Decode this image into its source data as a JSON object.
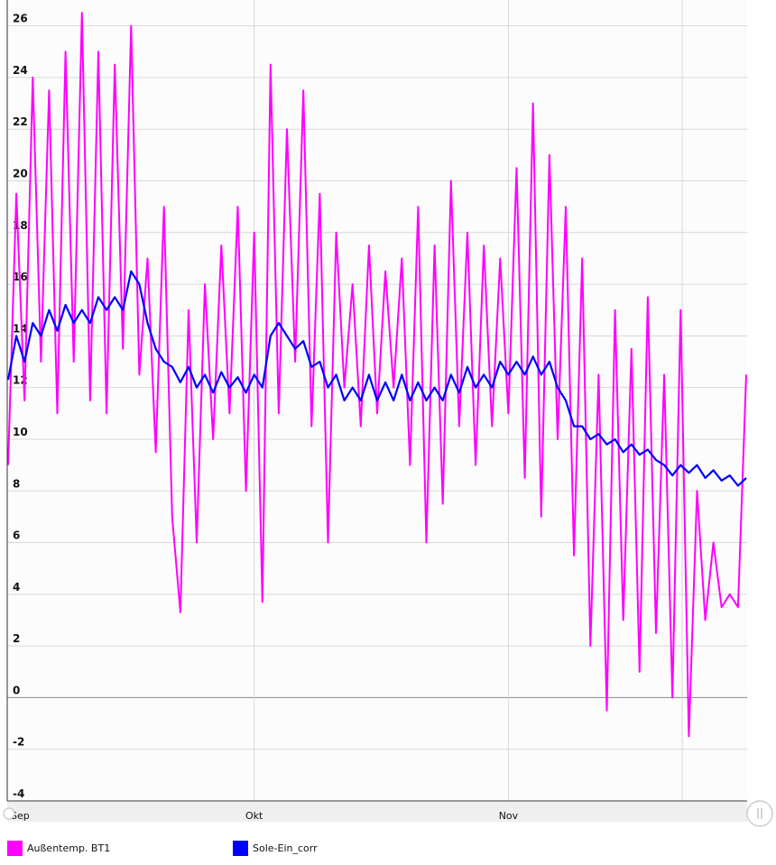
{
  "chart_data": {
    "type": "line",
    "title": "",
    "xlabel": "",
    "ylabel": "",
    "ylim": [
      -4,
      27
    ],
    "yticks": [
      -4,
      -2,
      0,
      2,
      4,
      6,
      8,
      10,
      12,
      14,
      16,
      18,
      20,
      22,
      24,
      26
    ],
    "x_ticks": [
      {
        "label": "Sep",
        "date": "2023-09-01"
      },
      {
        "label": "Okt",
        "date": "2023-10-01"
      },
      {
        "label": "Nov",
        "date": "2023-11-01"
      }
    ],
    "grid": true,
    "legend_position": "bottom",
    "series": [
      {
        "name": "Außentemp. BT1",
        "color": "#ff00ff",
        "points": [
          [
            "2023-09-01",
            9.0
          ],
          [
            "2023-09-02",
            19.5
          ],
          [
            "2023-09-03",
            11.5
          ],
          [
            "2023-09-04",
            24.0
          ],
          [
            "2023-09-05",
            13.0
          ],
          [
            "2023-09-06",
            23.5
          ],
          [
            "2023-09-07",
            11.0
          ],
          [
            "2023-09-08",
            25.0
          ],
          [
            "2023-09-09",
            13.0
          ],
          [
            "2023-09-10",
            26.5
          ],
          [
            "2023-09-11",
            11.5
          ],
          [
            "2023-09-12",
            25.0
          ],
          [
            "2023-09-13",
            11.0
          ],
          [
            "2023-09-14",
            24.5
          ],
          [
            "2023-09-15",
            13.5
          ],
          [
            "2023-09-16",
            26.0
          ],
          [
            "2023-09-17",
            12.5
          ],
          [
            "2023-09-18",
            17.0
          ],
          [
            "2023-09-19",
            9.5
          ],
          [
            "2023-09-20",
            19.0
          ],
          [
            "2023-09-21",
            7.0
          ],
          [
            "2023-09-22",
            3.3
          ],
          [
            "2023-09-23",
            15.0
          ],
          [
            "2023-09-24",
            6.0
          ],
          [
            "2023-09-25",
            16.0
          ],
          [
            "2023-09-26",
            10.0
          ],
          [
            "2023-09-27",
            17.5
          ],
          [
            "2023-09-28",
            11.0
          ],
          [
            "2023-09-29",
            19.0
          ],
          [
            "2023-09-30",
            8.0
          ],
          [
            "2023-10-01",
            18.0
          ],
          [
            "2023-10-02",
            3.7
          ],
          [
            "2023-10-03",
            24.5
          ],
          [
            "2023-10-04",
            11.0
          ],
          [
            "2023-10-05",
            22.0
          ],
          [
            "2023-10-06",
            13.0
          ],
          [
            "2023-10-07",
            23.5
          ],
          [
            "2023-10-08",
            10.5
          ],
          [
            "2023-10-09",
            19.5
          ],
          [
            "2023-10-10",
            6.0
          ],
          [
            "2023-10-11",
            18.0
          ],
          [
            "2023-10-12",
            12.0
          ],
          [
            "2023-10-13",
            16.0
          ],
          [
            "2023-10-14",
            10.5
          ],
          [
            "2023-10-15",
            17.5
          ],
          [
            "2023-10-16",
            11.0
          ],
          [
            "2023-10-17",
            16.5
          ],
          [
            "2023-10-18",
            12.0
          ],
          [
            "2023-10-19",
            17.0
          ],
          [
            "2023-10-20",
            9.0
          ],
          [
            "2023-10-21",
            19.0
          ],
          [
            "2023-10-22",
            6.0
          ],
          [
            "2023-10-23",
            17.5
          ],
          [
            "2023-10-24",
            7.5
          ],
          [
            "2023-10-25",
            20.0
          ],
          [
            "2023-10-26",
            10.5
          ],
          [
            "2023-10-27",
            18.0
          ],
          [
            "2023-10-28",
            9.0
          ],
          [
            "2023-10-29",
            17.5
          ],
          [
            "2023-10-30",
            10.5
          ],
          [
            "2023-10-31",
            17.0
          ],
          [
            "2023-11-01",
            11.0
          ],
          [
            "2023-11-02",
            20.5
          ],
          [
            "2023-11-03",
            8.5
          ],
          [
            "2023-11-04",
            23.0
          ],
          [
            "2023-11-05",
            7.0
          ],
          [
            "2023-11-06",
            21.0
          ],
          [
            "2023-11-07",
            10.0
          ],
          [
            "2023-11-08",
            19.0
          ],
          [
            "2023-11-09",
            5.5
          ],
          [
            "2023-11-10",
            17.0
          ],
          [
            "2023-11-11",
            2.0
          ],
          [
            "2023-11-12",
            12.5
          ],
          [
            "2023-11-13",
            -0.5
          ],
          [
            "2023-11-14",
            15.0
          ],
          [
            "2023-11-15",
            3.0
          ],
          [
            "2023-11-16",
            13.5
          ],
          [
            "2023-11-17",
            1.0
          ],
          [
            "2023-11-18",
            15.5
          ],
          [
            "2023-11-19",
            2.5
          ],
          [
            "2023-11-20",
            12.5
          ],
          [
            "2023-11-21",
            0.0
          ],
          [
            "2023-11-22",
            15.0
          ],
          [
            "2023-11-23",
            -1.5
          ],
          [
            "2023-11-24",
            8.0
          ],
          [
            "2023-11-25",
            3.0
          ],
          [
            "2023-11-26",
            6.0
          ],
          [
            "2023-11-27",
            3.5
          ],
          [
            "2023-11-28",
            4.0
          ],
          [
            "2023-11-29",
            3.5
          ],
          [
            "2023-11-30",
            12.5
          ]
        ]
      },
      {
        "name": "Sole-Ein_corr",
        "color": "#0000ff",
        "points": [
          [
            "2023-09-01",
            12.3
          ],
          [
            "2023-09-02",
            14.0
          ],
          [
            "2023-09-03",
            13.0
          ],
          [
            "2023-09-04",
            14.5
          ],
          [
            "2023-09-05",
            14.0
          ],
          [
            "2023-09-06",
            15.0
          ],
          [
            "2023-09-07",
            14.2
          ],
          [
            "2023-09-08",
            15.2
          ],
          [
            "2023-09-09",
            14.5
          ],
          [
            "2023-09-10",
            15.0
          ],
          [
            "2023-09-11",
            14.5
          ],
          [
            "2023-09-12",
            15.5
          ],
          [
            "2023-09-13",
            15.0
          ],
          [
            "2023-09-14",
            15.5
          ],
          [
            "2023-09-15",
            15.0
          ],
          [
            "2023-09-16",
            16.5
          ],
          [
            "2023-09-17",
            16.0
          ],
          [
            "2023-09-18",
            14.5
          ],
          [
            "2023-09-19",
            13.5
          ],
          [
            "2023-09-20",
            13.0
          ],
          [
            "2023-09-21",
            12.8
          ],
          [
            "2023-09-22",
            12.2
          ],
          [
            "2023-09-23",
            12.8
          ],
          [
            "2023-09-24",
            12.0
          ],
          [
            "2023-09-25",
            12.5
          ],
          [
            "2023-09-26",
            11.8
          ],
          [
            "2023-09-27",
            12.6
          ],
          [
            "2023-09-28",
            12.0
          ],
          [
            "2023-09-29",
            12.4
          ],
          [
            "2023-09-30",
            11.8
          ],
          [
            "2023-10-01",
            12.5
          ],
          [
            "2023-10-02",
            12.0
          ],
          [
            "2023-10-03",
            14.0
          ],
          [
            "2023-10-04",
            14.5
          ],
          [
            "2023-10-05",
            14.0
          ],
          [
            "2023-10-06",
            13.5
          ],
          [
            "2023-10-07",
            13.8
          ],
          [
            "2023-10-08",
            12.8
          ],
          [
            "2023-10-09",
            13.0
          ],
          [
            "2023-10-10",
            12.0
          ],
          [
            "2023-10-11",
            12.5
          ],
          [
            "2023-10-12",
            11.5
          ],
          [
            "2023-10-13",
            12.0
          ],
          [
            "2023-10-14",
            11.5
          ],
          [
            "2023-10-15",
            12.5
          ],
          [
            "2023-10-16",
            11.5
          ],
          [
            "2023-10-17",
            12.2
          ],
          [
            "2023-10-18",
            11.5
          ],
          [
            "2023-10-19",
            12.5
          ],
          [
            "2023-10-20",
            11.5
          ],
          [
            "2023-10-21",
            12.2
          ],
          [
            "2023-10-22",
            11.5
          ],
          [
            "2023-10-23",
            12.0
          ],
          [
            "2023-10-24",
            11.5
          ],
          [
            "2023-10-25",
            12.5
          ],
          [
            "2023-10-26",
            11.8
          ],
          [
            "2023-10-27",
            12.8
          ],
          [
            "2023-10-28",
            12.0
          ],
          [
            "2023-10-29",
            12.5
          ],
          [
            "2023-10-30",
            12.0
          ],
          [
            "2023-10-31",
            13.0
          ],
          [
            "2023-11-01",
            12.5
          ],
          [
            "2023-11-02",
            13.0
          ],
          [
            "2023-11-03",
            12.5
          ],
          [
            "2023-11-04",
            13.2
          ],
          [
            "2023-11-05",
            12.5
          ],
          [
            "2023-11-06",
            13.0
          ],
          [
            "2023-11-07",
            12.0
          ],
          [
            "2023-11-08",
            11.5
          ],
          [
            "2023-11-09",
            10.5
          ],
          [
            "2023-11-10",
            10.5
          ],
          [
            "2023-11-11",
            10.0
          ],
          [
            "2023-11-12",
            10.2
          ],
          [
            "2023-11-13",
            9.8
          ],
          [
            "2023-11-14",
            10.0
          ],
          [
            "2023-11-15",
            9.5
          ],
          [
            "2023-11-16",
            9.8
          ],
          [
            "2023-11-17",
            9.4
          ],
          [
            "2023-11-18",
            9.6
          ],
          [
            "2023-11-19",
            9.2
          ],
          [
            "2023-11-20",
            9.0
          ],
          [
            "2023-11-21",
            8.6
          ],
          [
            "2023-11-22",
            9.0
          ],
          [
            "2023-11-23",
            8.7
          ],
          [
            "2023-11-24",
            9.0
          ],
          [
            "2023-11-25",
            8.5
          ],
          [
            "2023-11-26",
            8.8
          ],
          [
            "2023-11-27",
            8.4
          ],
          [
            "2023-11-28",
            8.6
          ],
          [
            "2023-11-29",
            8.2
          ],
          [
            "2023-11-30",
            8.5
          ]
        ]
      }
    ]
  },
  "legend": {
    "items": [
      {
        "label": "Außentemp. BT1",
        "color": "#ff00ff"
      },
      {
        "label": "Sole-Ein_corr",
        "color": "#0000ff"
      }
    ]
  },
  "scrollbar": {
    "handle_icon": "grip-lines-icon"
  }
}
